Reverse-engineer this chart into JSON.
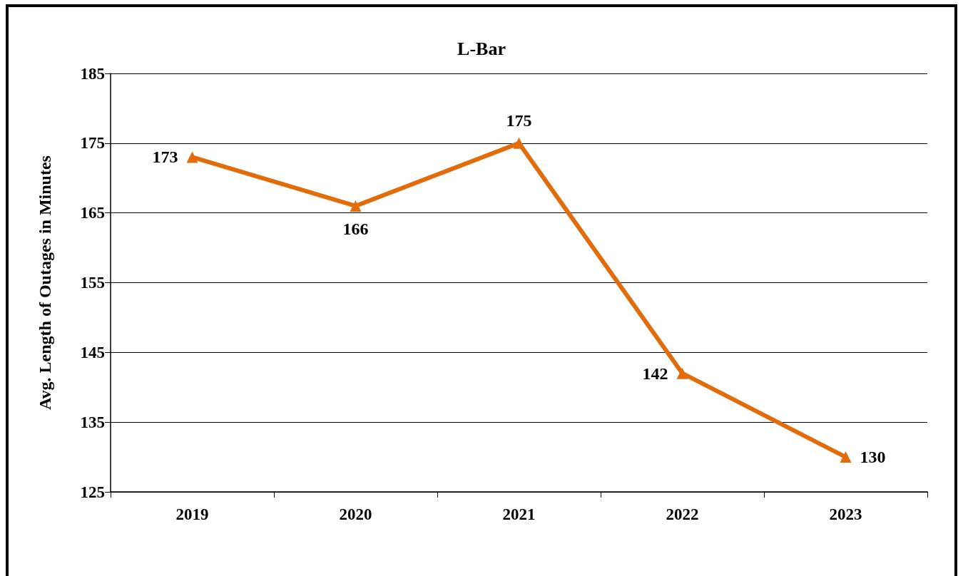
{
  "chart_data": {
    "type": "line",
    "title": "L-Bar",
    "ylabel": "Avg. Length of Outages in Minutes",
    "categories": [
      "2019",
      "2020",
      "2021",
      "2022",
      "2023"
    ],
    "series": [
      {
        "color": "#e36c0a",
        "values": [
          173,
          166,
          175,
          142,
          130
        ]
      }
    ],
    "ylim": [
      125,
      185
    ],
    "yticks": [
      125,
      135,
      145,
      155,
      165,
      175,
      185
    ],
    "grid": "y",
    "marker": "triangle",
    "line_style": "solid",
    "data_labels": true
  }
}
